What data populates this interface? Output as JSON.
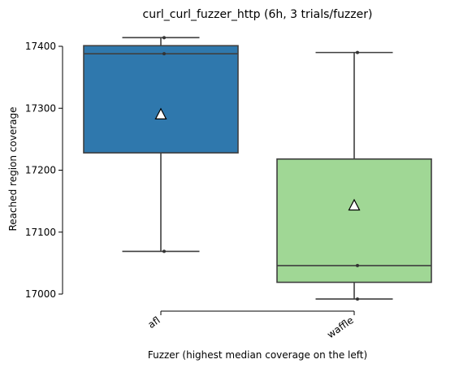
{
  "chart_data": {
    "type": "box",
    "title": "curl_curl_fuzzer_http (6h, 3 trials/fuzzer)",
    "xlabel": "Fuzzer (highest median coverage on the left)",
    "ylabel": "Reached region coverage",
    "ylim": [
      16990,
      17418
    ],
    "yticks": [
      17000,
      17100,
      17200,
      17300,
      17400
    ],
    "categories": [
      "afl",
      "waffle"
    ],
    "boxes": [
      {
        "name": "afl",
        "color": "#2f78ad",
        "whisker_low": 17069,
        "q1": 17228,
        "median": 17388,
        "q3": 17401,
        "whisker_high": 17414,
        "mean": 17290,
        "points": [
          17069,
          17388,
          17414
        ]
      },
      {
        "name": "waffle",
        "color": "#a0d795",
        "whisker_low": 16992,
        "q1": 17019,
        "median": 17046,
        "q3": 17218,
        "whisker_high": 17390,
        "mean": 17143,
        "points": [
          16992,
          17046,
          17390
        ]
      }
    ],
    "grid": false,
    "legend": "none"
  }
}
